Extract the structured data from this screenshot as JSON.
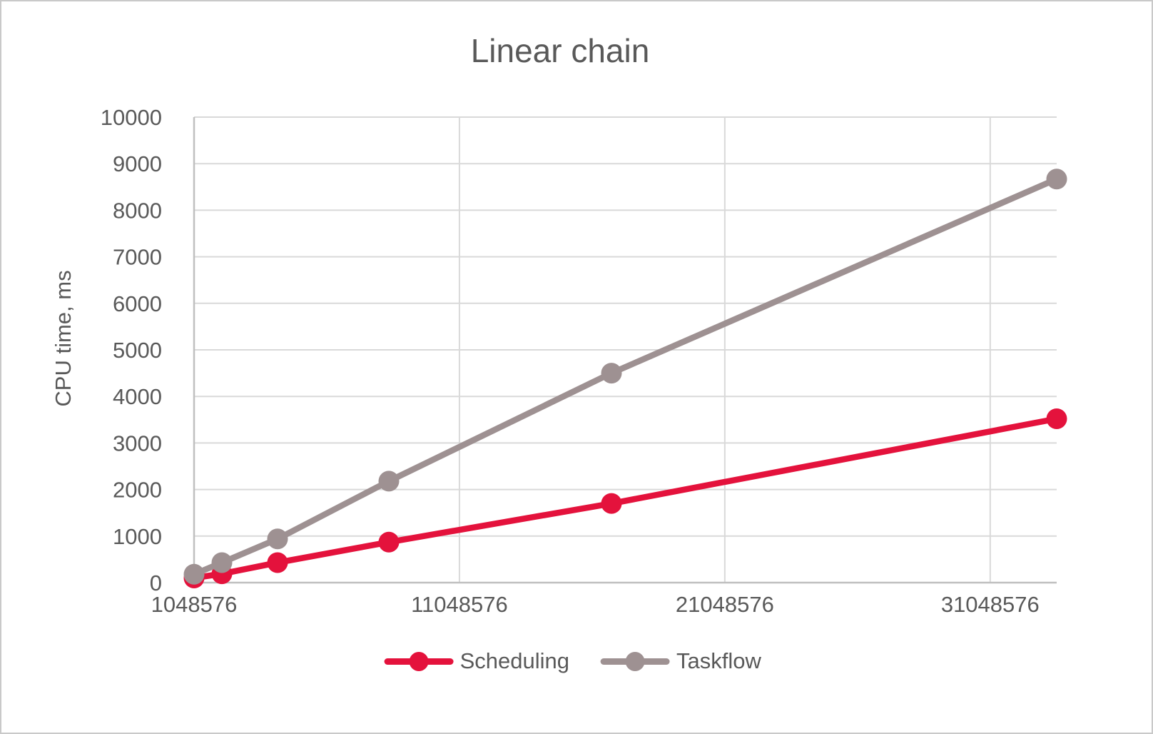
{
  "window": {
    "background": "#ffffff",
    "frame_border_color": "#c9c9c9"
  },
  "chart_data": {
    "type": "line",
    "title": "Linear chain",
    "xlabel": "",
    "ylabel": "CPU time, ms",
    "x": [
      1048576,
      2097152,
      4194304,
      8388608,
      16777216,
      33554432
    ],
    "series": [
      {
        "name": "Scheduling",
        "color": "#E4123C",
        "values": [
          100,
          190,
          430,
          870,
          1700,
          3520
        ]
      },
      {
        "name": "Taskflow",
        "color": "#9E9192",
        "values": [
          180,
          430,
          940,
          2180,
          4500,
          8670
        ]
      }
    ],
    "xlim": [
      1048576,
      33554432
    ],
    "ylim": [
      0,
      10000
    ],
    "x_ticks": [
      1048576,
      11048576,
      21048576,
      31048576
    ],
    "x_tick_labels": [
      "1048576",
      "11048576",
      "21048576",
      "31048576"
    ],
    "y_tick_step": 1000,
    "y_tick_labels": [
      "0",
      "1000",
      "2000",
      "3000",
      "4000",
      "5000",
      "6000",
      "7000",
      "8000",
      "9000",
      "10000"
    ],
    "grid": true,
    "legend_position": "bottom",
    "colors": {
      "text": "#595959",
      "gridline": "#D9D9D9",
      "axis": "#BFBFBF"
    },
    "line_width": 8.5,
    "marker_radius": 14.5
  }
}
